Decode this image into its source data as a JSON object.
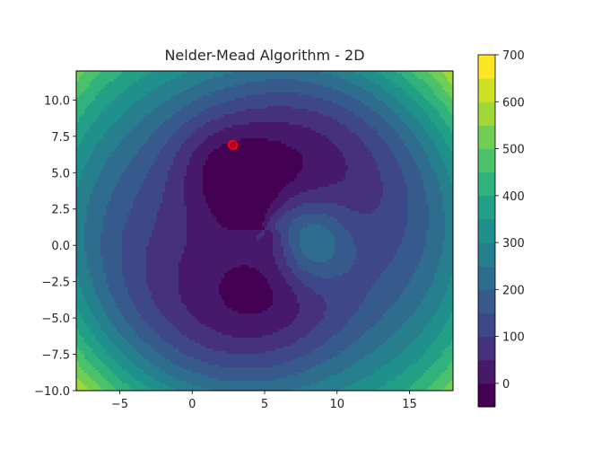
{
  "chart_data": {
    "type": "contourf",
    "title": "Nelder-Mead Algorithm - 2D",
    "xlabel": "",
    "ylabel": "",
    "xlim": [
      -8,
      18
    ],
    "ylim": [
      -10,
      12
    ],
    "x_ticks": [
      -5,
      0,
      5,
      10,
      15
    ],
    "x_tick_labels": [
      "−5",
      "0",
      "5",
      "10",
      "15"
    ],
    "y_ticks": [
      -10.0,
      -7.5,
      -5.0,
      -2.5,
      0.0,
      2.5,
      5.0,
      7.5,
      10.0
    ],
    "y_tick_labels": [
      "−10.0",
      "−7.5",
      "−5.0",
      "−2.5",
      "0.0",
      "2.5",
      "5.0",
      "7.5",
      "10.0"
    ],
    "colormap": "viridis",
    "colorbar": {
      "min": -50,
      "max": 700,
      "levels_step": 50,
      "ticks": [
        0,
        100,
        200,
        300,
        400,
        500,
        600,
        700
      ],
      "tick_labels": [
        "0",
        "100",
        "200",
        "300",
        "400",
        "500",
        "600",
        "700"
      ]
    },
    "features": {
      "central_minimum_basin": "crescent-shaped low region around (0..7, 0..10) and spiral arm down to (8,-7)",
      "local_peak": {
        "x": 8,
        "y": 0,
        "approx_value": 300
      }
    },
    "markers": [
      {
        "label": "simplex points",
        "x": 2.8,
        "y": 6.9,
        "color": "#ff0000",
        "style": "circle outline cluster"
      }
    ],
    "grid": false,
    "legend": null
  }
}
